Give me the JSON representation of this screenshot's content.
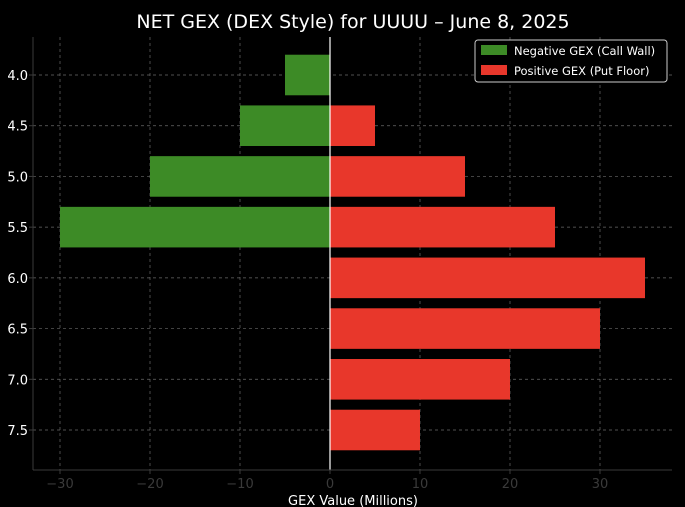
{
  "chart_data": {
    "type": "bar",
    "orientation": "horizontal",
    "title": "NET GEX (DEX Style) for UUUU – June 8, 2025",
    "xlabel": "GEX Value (Millions)",
    "ylabel": "",
    "categories": [
      "4.0",
      "4.5",
      "5.0",
      "5.5",
      "6.0",
      "6.5",
      "7.0",
      "7.5"
    ],
    "series": [
      {
        "name": "Negative GEX (Call Wall)",
        "color": "#3d8b26",
        "values": [
          -5,
          -10,
          -20,
          -30,
          0,
          0,
          0,
          0
        ]
      },
      {
        "name": "Positive GEX (Put Floor)",
        "color": "#e8372b",
        "values": [
          0,
          5,
          15,
          25,
          35,
          30,
          20,
          10
        ]
      }
    ],
    "xlim": [
      -33,
      38
    ],
    "xticks": [
      -30,
      -20,
      -10,
      0,
      10,
      20,
      30
    ],
    "xtick_labels": [
      "−30",
      "−20",
      "−10",
      "0",
      "10",
      "20",
      "30"
    ],
    "grid": true,
    "legend_position": "top-right"
  }
}
